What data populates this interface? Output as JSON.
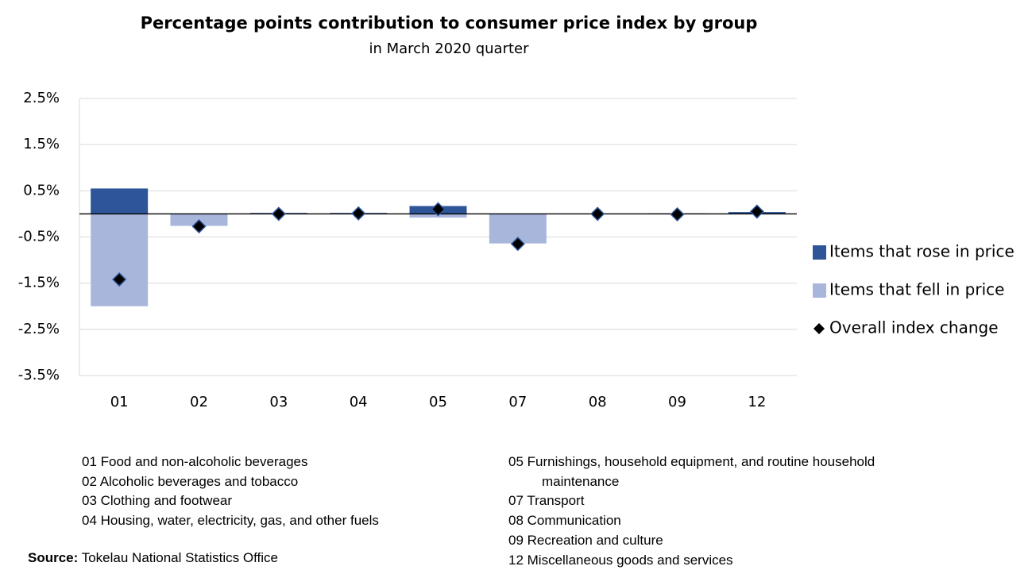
{
  "chart_data": {
    "type": "bar",
    "title": "Percentage points contribution to consumer price index by group",
    "subtitle": "in March 2020 quarter",
    "categories": [
      "01",
      "02",
      "03",
      "04",
      "05",
      "07",
      "08",
      "09",
      "12"
    ],
    "series": [
      {
        "name": "Items that rose in price",
        "type": "bar",
        "color": "#2e5597",
        "values": [
          0.55,
          0,
          0.02,
          0.02,
          0.17,
          0,
          0,
          0.01,
          0.04
        ]
      },
      {
        "name": "Items that fell in price",
        "type": "bar",
        "color": "#a9b6dc",
        "values": [
          -2.0,
          -0.26,
          -0.01,
          -0.01,
          -0.08,
          -0.64,
          0,
          -0.01,
          -0.01
        ]
      },
      {
        "name": "Overall index change",
        "type": "diamond",
        "color": "#000000",
        "values": [
          -1.42,
          -0.27,
          0,
          0.01,
          0.1,
          -0.65,
          0,
          -0.01,
          0.05
        ]
      }
    ],
    "ylim": [
      -3.5,
      2.5
    ],
    "yticks": [
      {
        "value": 2.5,
        "label": "2.5%"
      },
      {
        "value": 1.5,
        "label": "1.5%"
      },
      {
        "value": 0.5,
        "label": "0.5%"
      },
      {
        "value": -0.5,
        "label": "-0.5%"
      },
      {
        "value": -1.5,
        "label": "-1.5%"
      },
      {
        "value": -2.5,
        "label": "-2.5%"
      },
      {
        "value": -3.5,
        "label": "-3.5%"
      }
    ],
    "grid": true,
    "legend": "right",
    "notes_left": [
      "01 Food and non-alcoholic beverages",
      "02 Alcoholic beverages and tobacco",
      "03 Clothing and footwear",
      "04 Housing, water, electricity, gas, and other fuels"
    ],
    "notes_right": [
      "05 Furnishings, household equipment, and routine household maintenance",
      "07 Transport",
      "08 Communication",
      "09 Recreation and culture",
      "12 Miscellaneous goods and services"
    ],
    "source": {
      "label": "Source:",
      "text": "Tokelau National Statistics Office"
    }
  }
}
